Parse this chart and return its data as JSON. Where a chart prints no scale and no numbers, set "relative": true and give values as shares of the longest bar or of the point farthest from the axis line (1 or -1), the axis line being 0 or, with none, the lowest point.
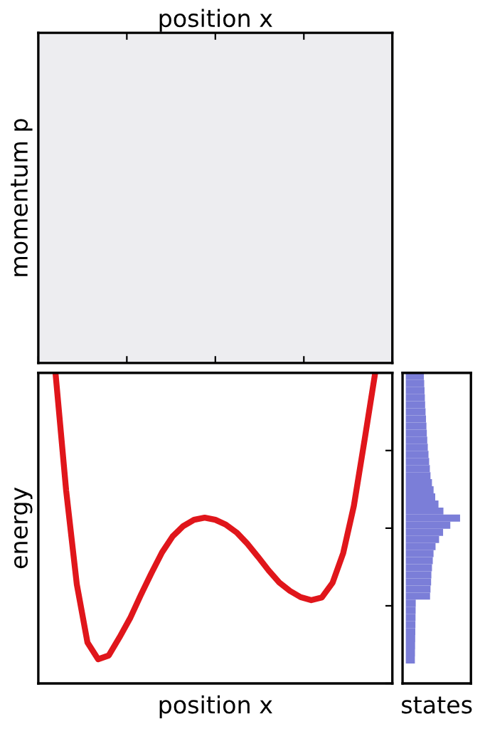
{
  "chart_data": [
    {
      "type": "other",
      "title": "position x",
      "ylabel": "momentum p"
    },
    {
      "type": "line",
      "relative": true,
      "xlabel": "position x",
      "ylabel": "energy",
      "tick_labels": false,
      "categories": [
        null,
        null,
        null,
        null,
        null,
        null,
        null,
        null,
        null,
        null,
        null,
        null,
        null,
        null,
        null,
        null,
        null,
        null,
        null,
        null,
        null,
        null,
        null,
        null,
        null,
        null,
        null,
        null,
        null,
        null,
        null
      ],
      "series": [
        {
          "type": "line",
          "color": "#e0161b",
          "values": [
            1.0,
            0.621,
            0.319,
            0.132,
            0.078,
            0.09,
            0.148,
            0.21,
            0.284,
            0.355,
            0.422,
            0.474,
            0.507,
            0.527,
            0.534,
            0.527,
            0.511,
            0.486,
            0.45,
            0.408,
            0.364,
            0.325,
            0.298,
            0.278,
            0.268,
            0.277,
            0.324,
            0.42,
            0.572,
            0.783,
            1.0
          ]
        }
      ]
    },
    {
      "type": "bar",
      "relative": true,
      "orientation": "horizontal",
      "xlabel": "states",
      "tick_labels": false,
      "categories": [
        null,
        null,
        null,
        null,
        null,
        null,
        null,
        null,
        null,
        null,
        null,
        null,
        null,
        null,
        null,
        null,
        null,
        null,
        null,
        null,
        null,
        null,
        null,
        null,
        null,
        null,
        null,
        null,
        null,
        null,
        null,
        null,
        null,
        null,
        null,
        null,
        null,
        null,
        null,
        null,
        null
      ],
      "series": [
        {
          "color": "#7b7ed8",
          "values": [
            0.333,
            0.339,
            0.345,
            0.351,
            0.356,
            0.364,
            0.372,
            0.38,
            0.387,
            0.395,
            0.405,
            0.418,
            0.43,
            0.443,
            0.455,
            0.482,
            0.512,
            0.542,
            0.602,
            0.693,
            1.0,
            0.82,
            0.687,
            0.613,
            0.548,
            0.511,
            0.497,
            0.482,
            0.471,
            0.466,
            0.455,
            0.447,
            0.183,
            0.181,
            0.179,
            0.177,
            0.175,
            0.173,
            0.171,
            0.169,
            0.167
          ]
        }
      ]
    }
  ]
}
